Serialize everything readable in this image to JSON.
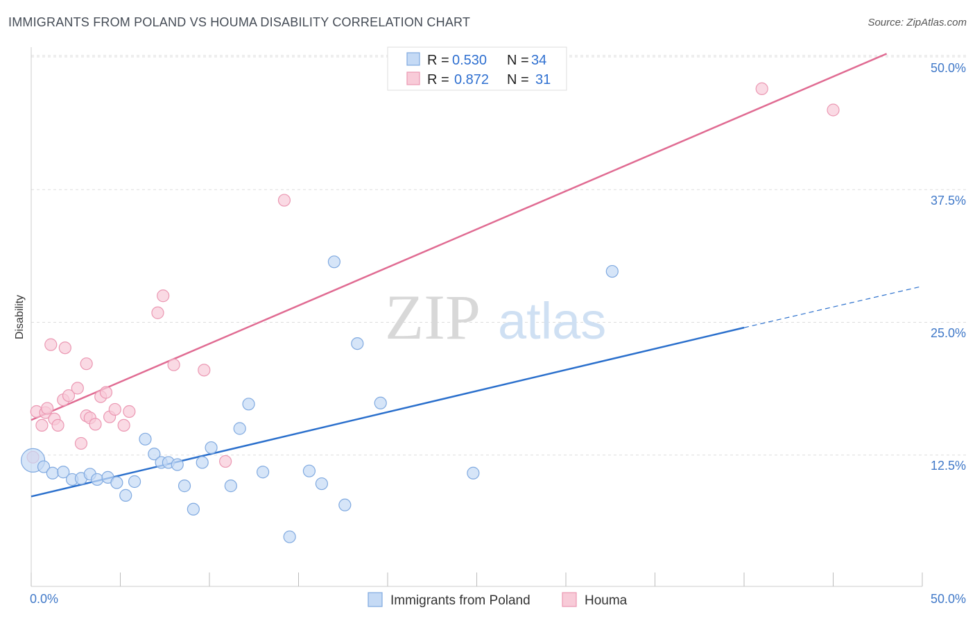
{
  "header": {
    "title": "IMMIGRANTS FROM POLAND VS HOUMA DISABILITY CORRELATION CHART",
    "source": "Source: ZipAtlas.com"
  },
  "watermark": {
    "zip": "ZIP",
    "atlas": "atlas"
  },
  "colors": {
    "poland_fill": "#c5daf5",
    "poland_stroke": "#7fa9e0",
    "poland_line": "#2a6fcc",
    "houma_fill": "#f8cbd8",
    "houma_stroke": "#eb97b2",
    "houma_line": "#e06b92",
    "grid": "#dddddd",
    "axis_label": "#3f78c8"
  },
  "legend": {
    "rows": [
      {
        "r_label": "R =",
        "r_value": "0.530",
        "n_label": "N =",
        "n_value": "34"
      },
      {
        "r_label": "R =",
        "r_value": "0.872",
        "n_label": "N =",
        "n_value": "31"
      }
    ]
  },
  "chart_data": {
    "type": "scatter",
    "title": "IMMIGRANTS FROM POLAND VS HOUMA DISABILITY CORRELATION CHART",
    "xlabel": "",
    "ylabel": "Disability",
    "xlim": [
      0,
      50
    ],
    "ylim": [
      0,
      50
    ],
    "x_tick_labels": [
      "0.0%",
      "50.0%"
    ],
    "y_tick_labels": [
      "12.5%",
      "25.0%",
      "37.5%",
      "50.0%"
    ],
    "y_ticks": [
      12.5,
      25.0,
      37.5,
      50.0
    ],
    "legend_position": "top-center",
    "series": [
      {
        "name": "Immigrants from Poland",
        "R": 0.53,
        "N": 34,
        "trend": {
          "x0": 0.0,
          "y0": 8.6,
          "x1": 40.0,
          "y1": 24.5,
          "dash_x1": 50.0,
          "dash_y1": 28.4
        },
        "points": [
          [
            0.1,
            12.0
          ],
          [
            0.7,
            11.4
          ],
          [
            1.2,
            10.8
          ],
          [
            1.8,
            10.9
          ],
          [
            2.3,
            10.2
          ],
          [
            2.8,
            10.3
          ],
          [
            3.3,
            10.7
          ],
          [
            3.7,
            10.2
          ],
          [
            4.3,
            10.4
          ],
          [
            4.8,
            9.9
          ],
          [
            5.3,
            8.7
          ],
          [
            5.8,
            10.0
          ],
          [
            6.4,
            14.0
          ],
          [
            6.9,
            12.6
          ],
          [
            7.3,
            11.8
          ],
          [
            7.7,
            11.8
          ],
          [
            8.2,
            11.6
          ],
          [
            8.6,
            9.6
          ],
          [
            9.1,
            7.4
          ],
          [
            9.6,
            11.8
          ],
          [
            10.1,
            13.2
          ],
          [
            11.2,
            9.6
          ],
          [
            11.7,
            15.0
          ],
          [
            12.2,
            17.3
          ],
          [
            13.0,
            10.9
          ],
          [
            14.5,
            4.8
          ],
          [
            15.6,
            11.0
          ],
          [
            16.3,
            9.8
          ],
          [
            17.0,
            30.7
          ],
          [
            17.6,
            7.8
          ],
          [
            18.3,
            23.0
          ],
          [
            19.6,
            17.4
          ],
          [
            24.8,
            10.8
          ],
          [
            32.6,
            29.8
          ]
        ]
      },
      {
        "name": "Houma",
        "R": 0.872,
        "N": 31,
        "trend": {
          "x0": 0.0,
          "y0": 15.8,
          "x1": 48.0,
          "y1": 50.3
        },
        "points": [
          [
            0.1,
            12.3
          ],
          [
            0.3,
            16.6
          ],
          [
            0.6,
            15.3
          ],
          [
            0.8,
            16.5
          ],
          [
            0.9,
            16.9
          ],
          [
            1.1,
            22.9
          ],
          [
            1.3,
            15.9
          ],
          [
            1.5,
            15.3
          ],
          [
            1.8,
            17.7
          ],
          [
            1.9,
            22.6
          ],
          [
            2.1,
            18.1
          ],
          [
            2.6,
            18.8
          ],
          [
            2.8,
            13.6
          ],
          [
            3.1,
            16.2
          ],
          [
            3.1,
            21.1
          ],
          [
            3.3,
            16.0
          ],
          [
            3.6,
            15.4
          ],
          [
            3.9,
            18.0
          ],
          [
            4.2,
            18.4
          ],
          [
            4.4,
            16.1
          ],
          [
            4.7,
            16.8
          ],
          [
            5.2,
            15.3
          ],
          [
            5.5,
            16.6
          ],
          [
            7.1,
            25.9
          ],
          [
            7.4,
            27.5
          ],
          [
            8.0,
            21.0
          ],
          [
            9.7,
            20.5
          ],
          [
            10.9,
            11.9
          ],
          [
            14.2,
            36.5
          ],
          [
            41.0,
            47.0
          ],
          [
            45.0,
            45.0
          ]
        ]
      }
    ]
  },
  "bottom_legend": {
    "items": [
      {
        "label": "Immigrants from Poland"
      },
      {
        "label": "Houma"
      }
    ]
  }
}
